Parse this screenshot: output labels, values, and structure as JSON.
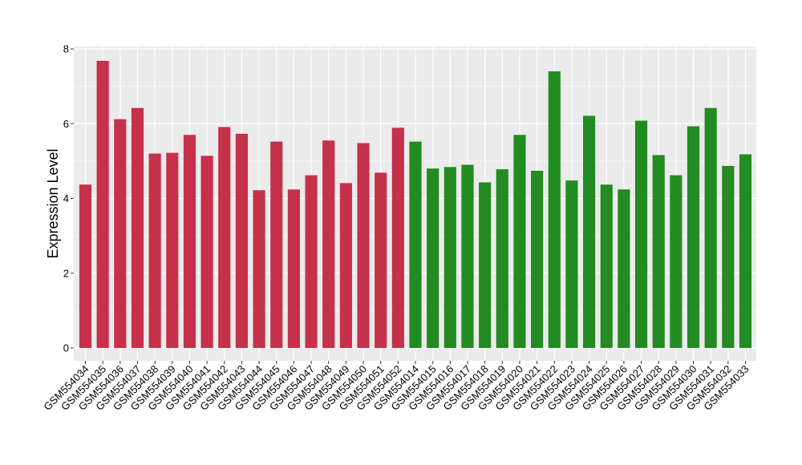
{
  "chart_data": {
    "type": "bar",
    "ylabel": "Expression Level",
    "xlabel": "",
    "ylim": [
      0,
      8
    ],
    "yticks": [
      "0",
      "2",
      "4",
      "6",
      "8"
    ],
    "grid": true,
    "colors": {
      "group_a": "#C5314A",
      "group_b": "#228B22",
      "panel": "#EBEBEB",
      "grid": "#FFFFFF"
    },
    "bars": [
      {
        "category": "GSM554034",
        "value": 4.37,
        "color": "#C5314A"
      },
      {
        "category": "GSM554035",
        "value": 7.68,
        "color": "#C5314A"
      },
      {
        "category": "GSM554036",
        "value": 6.12,
        "color": "#C5314A"
      },
      {
        "category": "GSM554037",
        "value": 6.42,
        "color": "#C5314A"
      },
      {
        "category": "GSM554038",
        "value": 5.2,
        "color": "#C5314A"
      },
      {
        "category": "GSM554039",
        "value": 5.22,
        "color": "#C5314A"
      },
      {
        "category": "GSM554040",
        "value": 5.7,
        "color": "#C5314A"
      },
      {
        "category": "GSM554041",
        "value": 5.14,
        "color": "#C5314A"
      },
      {
        "category": "GSM554042",
        "value": 5.91,
        "color": "#C5314A"
      },
      {
        "category": "GSM554043",
        "value": 5.73,
        "color": "#C5314A"
      },
      {
        "category": "GSM554044",
        "value": 4.22,
        "color": "#C5314A"
      },
      {
        "category": "GSM554045",
        "value": 5.52,
        "color": "#C5314A"
      },
      {
        "category": "GSM554046",
        "value": 4.24,
        "color": "#C5314A"
      },
      {
        "category": "GSM554047",
        "value": 4.62,
        "color": "#C5314A"
      },
      {
        "category": "GSM554048",
        "value": 5.55,
        "color": "#C5314A"
      },
      {
        "category": "GSM554049",
        "value": 4.41,
        "color": "#C5314A"
      },
      {
        "category": "GSM554050",
        "value": 5.48,
        "color": "#C5314A"
      },
      {
        "category": "GSM554051",
        "value": 4.69,
        "color": "#C5314A"
      },
      {
        "category": "GSM554052",
        "value": 5.89,
        "color": "#C5314A"
      },
      {
        "category": "GSM554014",
        "value": 5.52,
        "color": "#228B22"
      },
      {
        "category": "GSM554015",
        "value": 4.8,
        "color": "#228B22"
      },
      {
        "category": "GSM554016",
        "value": 4.84,
        "color": "#228B22"
      },
      {
        "category": "GSM554017",
        "value": 4.9,
        "color": "#228B22"
      },
      {
        "category": "GSM554018",
        "value": 4.43,
        "color": "#228B22"
      },
      {
        "category": "GSM554019",
        "value": 4.78,
        "color": "#228B22"
      },
      {
        "category": "GSM554020",
        "value": 5.7,
        "color": "#228B22"
      },
      {
        "category": "GSM554021",
        "value": 4.74,
        "color": "#228B22"
      },
      {
        "category": "GSM554022",
        "value": 7.4,
        "color": "#228B22"
      },
      {
        "category": "GSM554023",
        "value": 4.48,
        "color": "#228B22"
      },
      {
        "category": "GSM554024",
        "value": 6.21,
        "color": "#228B22"
      },
      {
        "category": "GSM554025",
        "value": 4.37,
        "color": "#228B22"
      },
      {
        "category": "GSM554026",
        "value": 4.24,
        "color": "#228B22"
      },
      {
        "category": "GSM554027",
        "value": 6.08,
        "color": "#228B22"
      },
      {
        "category": "GSM554028",
        "value": 5.16,
        "color": "#228B22"
      },
      {
        "category": "GSM554029",
        "value": 4.62,
        "color": "#228B22"
      },
      {
        "category": "GSM554030",
        "value": 5.93,
        "color": "#228B22"
      },
      {
        "category": "GSM554031",
        "value": 6.42,
        "color": "#228B22"
      },
      {
        "category": "GSM554032",
        "value": 4.87,
        "color": "#228B22"
      },
      {
        "category": "GSM554033",
        "value": 5.18,
        "color": "#228B22"
      }
    ]
  }
}
